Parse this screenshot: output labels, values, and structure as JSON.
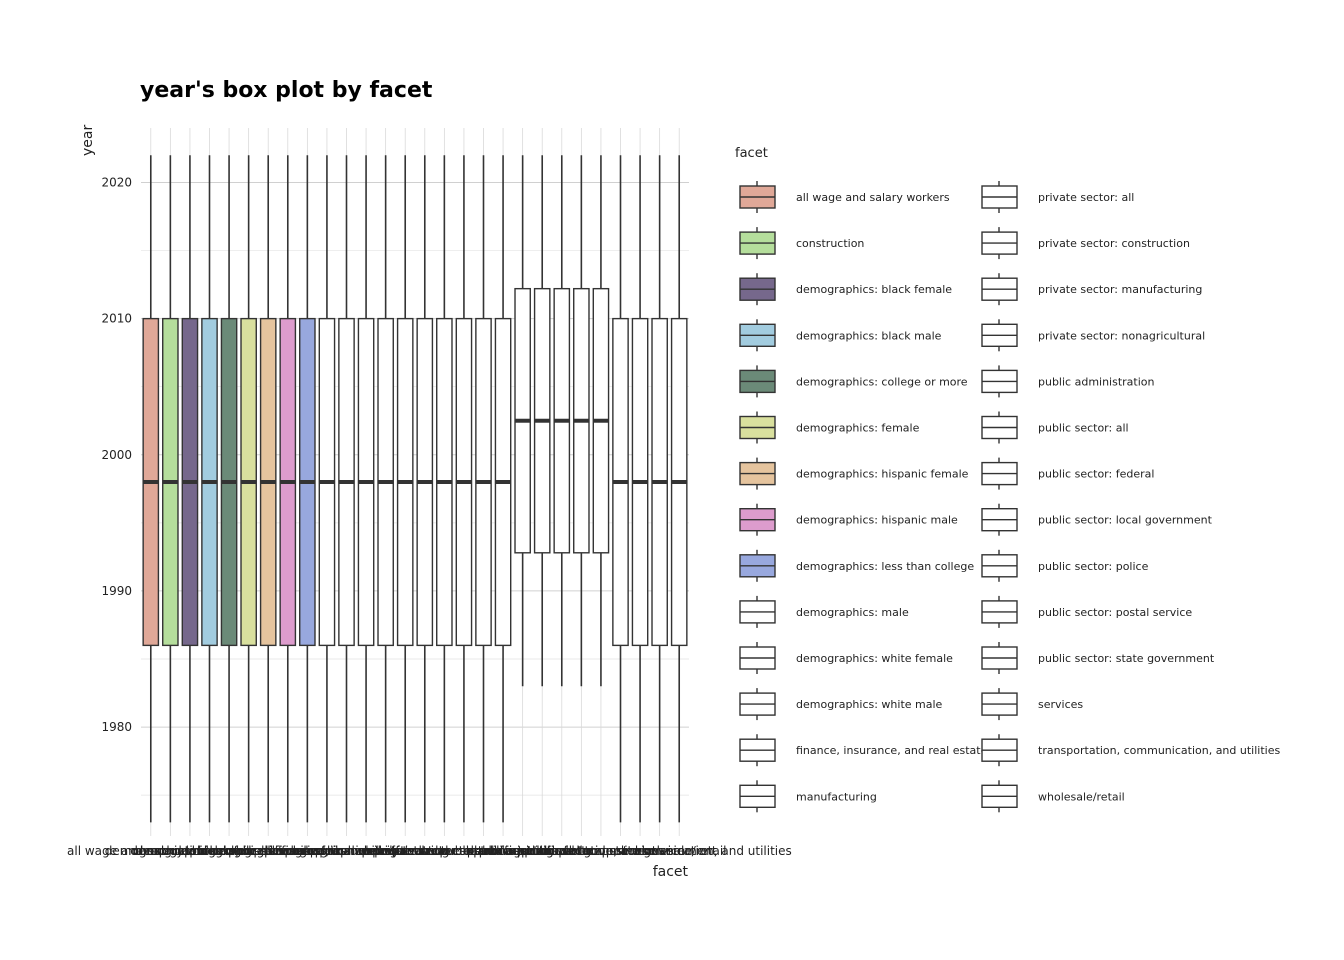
{
  "chart_data": {
    "type": "box",
    "title": "year's box plot by facet",
    "xlabel": "facet",
    "ylabel": "year",
    "ylim": [
      1972,
      2024
    ],
    "yticks": [
      1980,
      1990,
      2000,
      2010,
      2020
    ],
    "grid": true,
    "legend": {
      "title": "facet",
      "position": "right",
      "columns": 2
    },
    "categories": [
      "all wage and salary workers",
      "construction",
      "demographics: black female",
      "demographics: black male",
      "demographics: college or more",
      "demographics: female",
      "demographics: hispanic female",
      "demographics: hispanic male",
      "demographics: less than college",
      "demographics: male",
      "demographics: white female",
      "demographics: white male",
      "finance, insurance, and real estate",
      "manufacturing",
      "private sector: all",
      "private sector: construction",
      "private sector: manufacturing",
      "private sector: nonagricultural",
      "public administration",
      "public sector: all",
      "public sector: federal",
      "public sector: local government",
      "public sector: police",
      "public sector: postal service",
      "public sector: state government",
      "services",
      "transportation, communication, and utilities",
      "wholesale/retail"
    ],
    "colors": [
      "#E0A898",
      "#B5DE9C",
      "#76688C",
      "#A2CCDF",
      "#6B8A78",
      "#D9E09E",
      "#E5C49E",
      "#DD9CCD",
      "#98A8DE",
      "#FFFFFF",
      "#FFFFFF",
      "#FFFFFF",
      "#FFFFFF",
      "#FFFFFF",
      "#FFFFFF",
      "#FFFFFF",
      "#FFFFFF",
      "#FFFFFF",
      "#FFFFFF",
      "#FFFFFF",
      "#FFFFFF",
      "#FFFFFF",
      "#FFFFFF",
      "#FFFFFF",
      "#FFFFFF",
      "#FFFFFF",
      "#FFFFFF",
      "#FFFFFF"
    ],
    "series": [
      {
        "min": 1973,
        "q1": 1986,
        "median": 1998,
        "q3": 2010,
        "max": 2022
      },
      {
        "min": 1973,
        "q1": 1986,
        "median": 1998,
        "q3": 2010,
        "max": 2022
      },
      {
        "min": 1973,
        "q1": 1986,
        "median": 1998,
        "q3": 2010,
        "max": 2022
      },
      {
        "min": 1973,
        "q1": 1986,
        "median": 1998,
        "q3": 2010,
        "max": 2022
      },
      {
        "min": 1973,
        "q1": 1986,
        "median": 1998,
        "q3": 2010,
        "max": 2022
      },
      {
        "min": 1973,
        "q1": 1986,
        "median": 1998,
        "q3": 2010,
        "max": 2022
      },
      {
        "min": 1973,
        "q1": 1986,
        "median": 1998,
        "q3": 2010,
        "max": 2022
      },
      {
        "min": 1973,
        "q1": 1986,
        "median": 1998,
        "q3": 2010,
        "max": 2022
      },
      {
        "min": 1973,
        "q1": 1986,
        "median": 1998,
        "q3": 2010,
        "max": 2022
      },
      {
        "min": 1973,
        "q1": 1986,
        "median": 1998,
        "q3": 2010,
        "max": 2022
      },
      {
        "min": 1973,
        "q1": 1986,
        "median": 1998,
        "q3": 2010,
        "max": 2022
      },
      {
        "min": 1973,
        "q1": 1986,
        "median": 1998,
        "q3": 2010,
        "max": 2022
      },
      {
        "min": 1973,
        "q1": 1986,
        "median": 1998,
        "q3": 2010,
        "max": 2022
      },
      {
        "min": 1973,
        "q1": 1986,
        "median": 1998,
        "q3": 2010,
        "max": 2022
      },
      {
        "min": 1973,
        "q1": 1986,
        "median": 1998,
        "q3": 2010,
        "max": 2022
      },
      {
        "min": 1973,
        "q1": 1986,
        "median": 1998,
        "q3": 2010,
        "max": 2022
      },
      {
        "min": 1973,
        "q1": 1986,
        "median": 1998,
        "q3": 2010,
        "max": 2022
      },
      {
        "min": 1973,
        "q1": 1986,
        "median": 1998,
        "q3": 2010,
        "max": 2022
      },
      {
        "min": 1973,
        "q1": 1986,
        "median": 1998,
        "q3": 2010,
        "max": 2022
      },
      {
        "min": 1983,
        "q1": 1992.8,
        "median": 2002.5,
        "q3": 2012.2,
        "max": 2022
      },
      {
        "min": 1983,
        "q1": 1992.8,
        "median": 2002.5,
        "q3": 2012.2,
        "max": 2022
      },
      {
        "min": 1983,
        "q1": 1992.8,
        "median": 2002.5,
        "q3": 2012.2,
        "max": 2022
      },
      {
        "min": 1983,
        "q1": 1992.8,
        "median": 2002.5,
        "q3": 2012.2,
        "max": 2022
      },
      {
        "min": 1983,
        "q1": 1992.8,
        "median": 2002.5,
        "q3": 2012.2,
        "max": 2022
      },
      {
        "min": 1973,
        "q1": 1986,
        "median": 1998,
        "q3": 2010,
        "max": 2022
      },
      {
        "min": 1973,
        "q1": 1986,
        "median": 1998,
        "q3": 2010,
        "max": 2022
      },
      {
        "min": 1973,
        "q1": 1986,
        "median": 1998,
        "q3": 2010,
        "max": 2022
      },
      {
        "min": 1973,
        "q1": 1986,
        "median": 1998,
        "q3": 2010,
        "max": 2022
      }
    ]
  }
}
